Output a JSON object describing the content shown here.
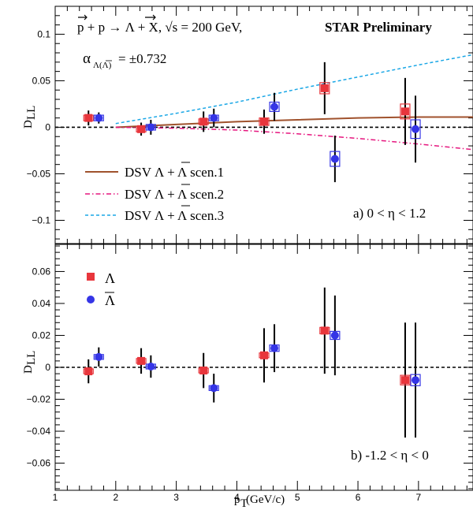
{
  "colors": {
    "lambda": "#e8363c",
    "antilambda": "#3535e6",
    "scen1": "#a0522d",
    "scen2": "#e6177f",
    "scen3": "#1aa7e6"
  },
  "chart_data": [
    {
      "type": "scatter",
      "panel": "top",
      "title": "p + p → Λ + X,  √s = 200 GeV,",
      "title_suffix": "STAR Preliminary",
      "alpha_text": "α",
      "alpha_sub": "Λ(Λ)",
      "alpha_value": " = ±0.732",
      "xlabel": "",
      "ylabel": "D",
      "ylabel_sub": "LL",
      "annotation": "a) 0 < η < 1.2",
      "xlim": [
        1,
        7.9
      ],
      "ylim": [
        -0.125,
        0.13
      ],
      "yticks": [
        -0.1,
        -0.05,
        0,
        0.05,
        0.1
      ],
      "ytick_labels": [
        "−0.1",
        "−0.05",
        "0",
        "0.05",
        "0.1"
      ],
      "legend_position": "lower-left",
      "series": [
        {
          "kind": "points",
          "color_key": "lambda",
          "marker": "square",
          "x": [
            1.55,
            2.42,
            3.45,
            4.45,
            5.45,
            6.78
          ],
          "y": [
            0.01,
            -0.002,
            0.006,
            0.006,
            0.042,
            0.017
          ],
          "err": [
            0.008,
            0.007,
            0.011,
            0.013,
            0.028,
            0.036
          ],
          "sys": [
            0.003,
            0.003,
            0.003,
            0.004,
            0.006,
            0.008
          ]
        },
        {
          "kind": "points",
          "color_key": "antilambda",
          "marker": "circle",
          "x": [
            1.72,
            2.58,
            3.62,
            4.62,
            5.62,
            6.95
          ],
          "y": [
            0.01,
            0.0,
            0.01,
            0.022,
            -0.034,
            -0.002
          ],
          "err": [
            0.006,
            0.008,
            0.01,
            0.015,
            0.025,
            0.036
          ],
          "sys": [
            0.003,
            0.003,
            0.003,
            0.005,
            0.008,
            0.01
          ]
        },
        {
          "kind": "curve",
          "name": "DSV Λ + Λ scen.1",
          "color_key": "scen1",
          "dash": "solid",
          "x": [
            2.0,
            3.0,
            4.0,
            5.0,
            6.0,
            7.0,
            7.9
          ],
          "y": [
            0.0,
            0.003,
            0.006,
            0.008,
            0.01,
            0.011,
            0.011
          ]
        },
        {
          "kind": "curve",
          "name": "DSV Λ + Λ scen.2",
          "color_key": "scen2",
          "dash": "dashdot",
          "x": [
            2.0,
            3.0,
            4.0,
            5.0,
            6.0,
            7.0,
            7.9
          ],
          "y": [
            0.0,
            -0.001,
            -0.003,
            -0.007,
            -0.012,
            -0.018,
            -0.024
          ]
        },
        {
          "kind": "curve",
          "name": "DSV Λ + Λ scen.3",
          "color_key": "scen3",
          "dash": "dashed",
          "x": [
            2.0,
            3.0,
            4.0,
            5.0,
            6.0,
            7.0,
            7.9
          ],
          "y": [
            0.004,
            0.015,
            0.027,
            0.041,
            0.054,
            0.067,
            0.078
          ]
        }
      ]
    },
    {
      "type": "scatter",
      "panel": "bottom",
      "xlabel": "p",
      "xlabel_sub": "T",
      "xlabel_unit": " (GeV/c)",
      "ylabel": "D",
      "ylabel_sub": "LL",
      "annotation": "b) -1.2 < η < 0",
      "xlim": [
        1,
        7.9
      ],
      "ylim": [
        -0.077,
        0.077
      ],
      "xticks": [
        1,
        2,
        3,
        4,
        5,
        6,
        7
      ],
      "yticks": [
        -0.06,
        -0.04,
        -0.02,
        0,
        0.02,
        0.04,
        0.06
      ],
      "ytick_labels": [
        "−0.06",
        "−0.04",
        "−0.02",
        "0",
        "0.02",
        "0.04",
        "0.06"
      ],
      "legend_position": "upper-left",
      "legend": [
        "Λ",
        "Λ"
      ],
      "series": [
        {
          "kind": "points",
          "color_key": "lambda",
          "marker": "square",
          "x": [
            1.55,
            2.42,
            3.45,
            4.45,
            5.45,
            6.78
          ],
          "y": [
            -0.0025,
            0.004,
            -0.002,
            0.0075,
            0.023,
            -0.008
          ],
          "err": [
            0.0075,
            0.008,
            0.011,
            0.017,
            0.027,
            0.036
          ],
          "sys": [
            0.0015,
            0.0015,
            0.0015,
            0.0015,
            0.002,
            0.003
          ]
        },
        {
          "kind": "points",
          "color_key": "antilambda",
          "marker": "circle",
          "x": [
            1.72,
            2.58,
            3.62,
            4.62,
            5.62,
            6.95
          ],
          "y": [
            0.0065,
            0.0005,
            -0.013,
            0.012,
            0.02,
            -0.008
          ],
          "err": [
            0.006,
            0.007,
            0.009,
            0.015,
            0.025,
            0.036
          ],
          "sys": [
            0.0015,
            0.0015,
            0.0015,
            0.002,
            0.0025,
            0.0035
          ]
        }
      ]
    }
  ]
}
